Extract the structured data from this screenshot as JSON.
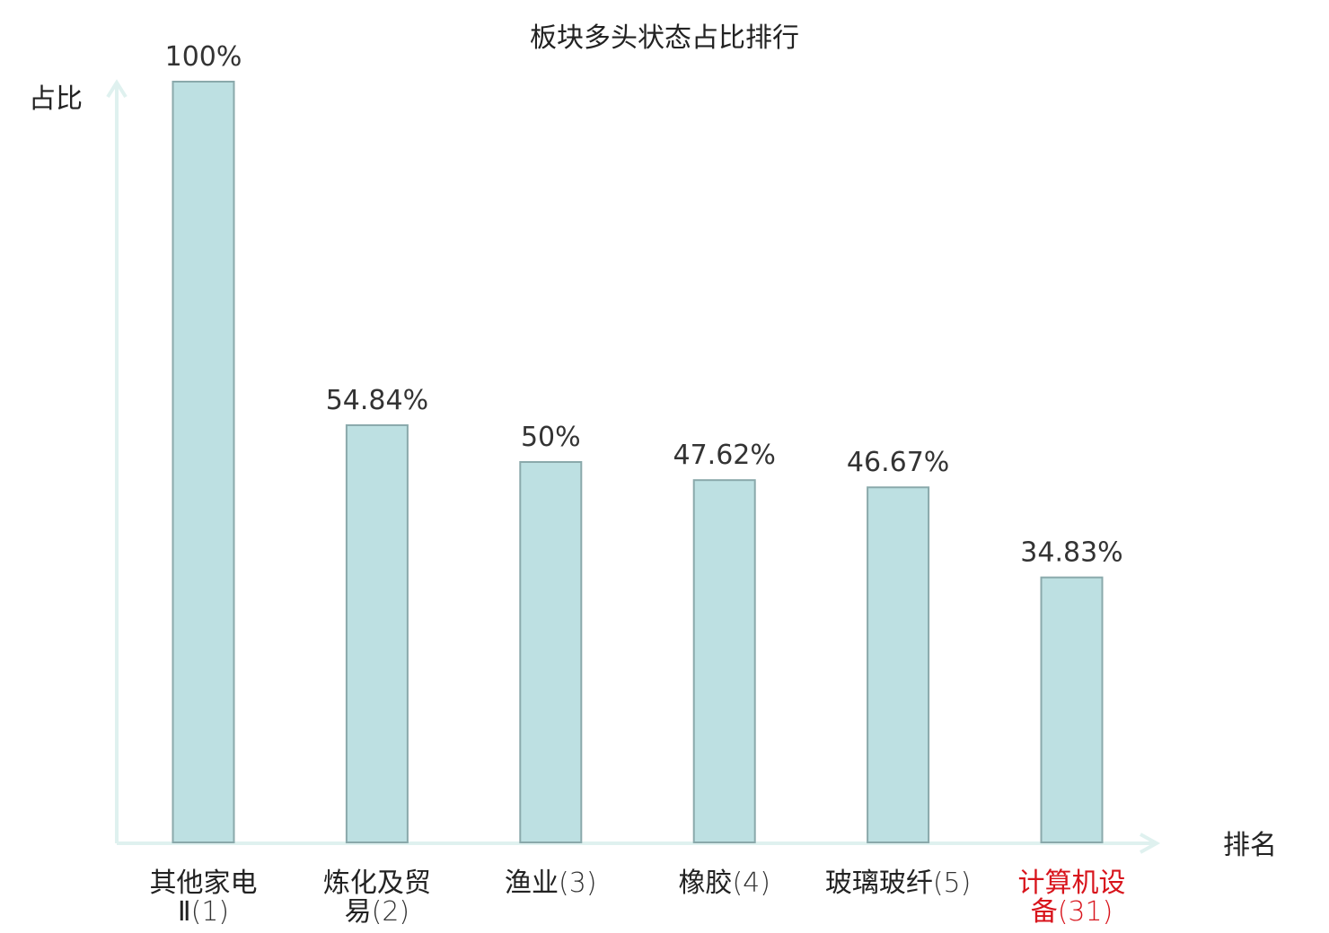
{
  "chart_data": {
    "type": "bar",
    "title": "板块多头状态占比排行",
    "ylabel": "占比",
    "xlabel": "排名",
    "ylim": [
      0,
      100
    ],
    "grid": false,
    "categories": [
      {
        "name_line1": "其他家电",
        "name_line2": "Ⅱ",
        "rank": "(1)",
        "highlight": false
      },
      {
        "name_line1": "炼化及贸",
        "name_line2": "易",
        "rank": "(2)",
        "highlight": false
      },
      {
        "name_line1": "渔业",
        "name_line2": "",
        "rank": "(3)",
        "highlight": false
      },
      {
        "name_line1": "橡胶",
        "name_line2": "",
        "rank": "(4)",
        "highlight": false
      },
      {
        "name_line1": "玻璃玻纤",
        "name_line2": "",
        "rank": "(5)",
        "highlight": false
      },
      {
        "name_line1": "计算机设",
        "name_line2": "备",
        "rank": "(31)",
        "highlight": true
      }
    ],
    "values": [
      100,
      54.84,
      50,
      47.62,
      46.67,
      34.83
    ],
    "value_labels": [
      "100%",
      "54.84%",
      "50%",
      "47.62%",
      "46.67%",
      "34.83%"
    ],
    "colors": {
      "bar_fill": "#bde0e2",
      "bar_stroke": "#8aa9ab",
      "axis": "#dff1ef",
      "highlight_text": "#d8141c"
    }
  }
}
